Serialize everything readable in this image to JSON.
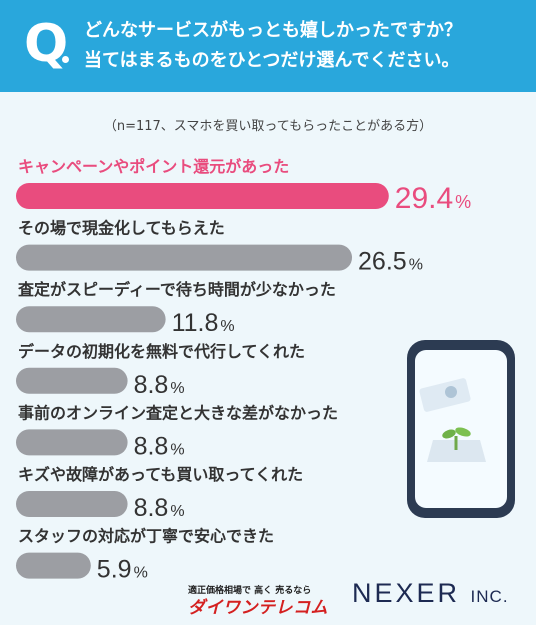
{
  "header": {
    "q_mark": "Q",
    "line1": "どんなサービスがもっとも嬉しかったですか？",
    "line2": "当てはまるものをひとつだけ選んでください。"
  },
  "note": "（n=117、スマホを買い取ってもらったことがある方）",
  "chart_data": {
    "type": "bar",
    "orientation": "horizontal",
    "categories": [
      "キャンペーンやポイント還元があった",
      "その場で現金化してもらえた",
      "査定がスピーディーで待ち時間が少なかった",
      "データの初期化を無料で代行してくれた",
      "事前のオンライン査定と大きな差がなかった",
      "キズや故障があっても買い取ってくれた",
      "スタッフの対応が丁寧で安心できた"
    ],
    "values": [
      29.4,
      26.5,
      11.8,
      8.8,
      8.8,
      8.8,
      5.9
    ],
    "value_labels": [
      "29.4",
      "26.5",
      "11.8",
      "8.8",
      "8.8",
      "8.8",
      "5.9"
    ],
    "unit": "%",
    "highlight_color": "#e94c7e",
    "bar_color": "#9c9ea3",
    "highlight_index": 0
  },
  "footer": {
    "logo1_line1": "適正価格相場で 高く 売るなら",
    "logo1_line2": "ダイワンテレコム",
    "logo2": "NEXER",
    "logo2_suffix": "INC."
  }
}
